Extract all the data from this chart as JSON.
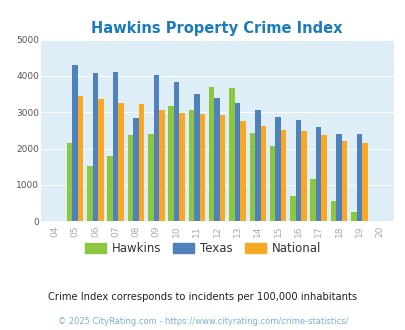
{
  "title": "Hawkins Property Crime Index",
  "years": [
    "04",
    "05",
    "06",
    "07",
    "08",
    "09",
    "10",
    "11",
    "12",
    "13",
    "14",
    "15",
    "16",
    "17",
    "18",
    "19",
    "20"
  ],
  "hawkins": [
    0,
    2150,
    1520,
    1800,
    2380,
    2400,
    3170,
    3060,
    3700,
    3660,
    2430,
    2060,
    700,
    1170,
    560,
    240,
    0
  ],
  "texas": [
    0,
    4300,
    4070,
    4100,
    2830,
    4020,
    3820,
    3490,
    3390,
    3250,
    3060,
    2860,
    2790,
    2600,
    2410,
    2410,
    0
  ],
  "national": [
    0,
    3450,
    3350,
    3250,
    3220,
    3060,
    2970,
    2960,
    2910,
    2750,
    2620,
    2510,
    2470,
    2360,
    2200,
    2140,
    0
  ],
  "hawkins_color": "#8dc63f",
  "texas_color": "#4f81bd",
  "national_color": "#f9a825",
  "bg_color": "#ddeef6",
  "title_color": "#1a7bbf",
  "tick_color": "#aaaaaa",
  "ylim": [
    0,
    5000
  ],
  "yticks": [
    0,
    1000,
    2000,
    3000,
    4000,
    5000
  ],
  "subtitle": "Crime Index corresponds to incidents per 100,000 inhabitants",
  "footer": "© 2025 CityRating.com - https://www.cityrating.com/crime-statistics/",
  "legend_labels": [
    "Hawkins",
    "Texas",
    "National"
  ],
  "subtitle_color": "#222222",
  "footer_color": "#7ab0d4"
}
